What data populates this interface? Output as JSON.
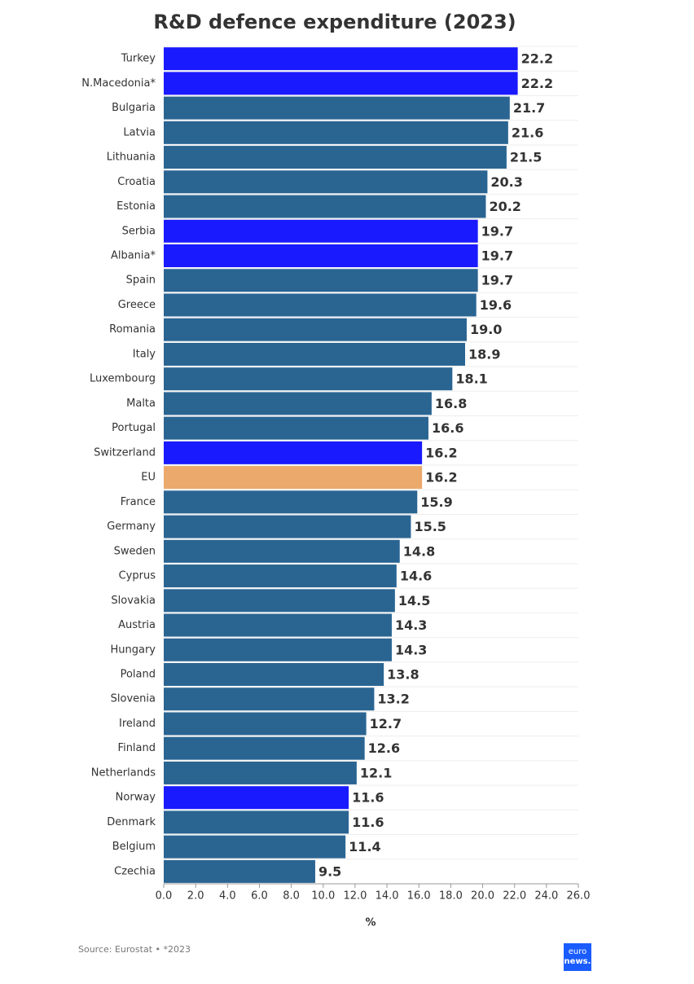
{
  "chart_data": {
    "type": "bar",
    "orientation": "horizontal",
    "title": "R&D defence expenditure (2023)",
    "categories": [
      "Turkey",
      "N.Macedonia*",
      "Bulgaria",
      "Latvia",
      "Lithuania",
      "Croatia",
      "Estonia",
      "Serbia",
      "Albania*",
      "Spain",
      "Greece",
      "Romania",
      "Italy",
      "Luxembourg",
      "Malta",
      "Portugal",
      "Switzerland",
      "EU",
      "France",
      "Germany",
      "Sweden",
      "Cyprus",
      "Slovakia",
      "Austria",
      "Hungary",
      "Poland",
      "Slovenia",
      "Ireland",
      "Finland",
      "Netherlands",
      "Norway",
      "Denmark",
      "Belgium",
      "Czechia"
    ],
    "values": [
      22.2,
      22.2,
      21.7,
      21.6,
      21.5,
      20.3,
      20.2,
      19.7,
      19.7,
      19.7,
      19.6,
      19,
      18.9,
      18.1,
      16.8,
      16.6,
      16.2,
      16.2,
      15.9,
      15.5,
      14.8,
      14.6,
      14.5,
      14.3,
      14.3,
      13.8,
      13.2,
      12.7,
      12.6,
      12.1,
      11.6,
      11.6,
      11.4,
      9.5
    ],
    "value_labels": [
      "22.2",
      "22.2",
      "21.7",
      "21.6",
      "21.5",
      "20.3",
      "20.2",
      "19.7",
      "19.7",
      "19.7",
      "19.6",
      "19.0",
      "18.9",
      "18.1",
      "16.8",
      "16.6",
      "16.2",
      "16.2",
      "15.9",
      "15.5",
      "14.8",
      "14.6",
      "14.5",
      "14.3",
      "14.3",
      "13.8",
      "13.2",
      "12.7",
      "12.6",
      "12.1",
      "11.6",
      "11.6",
      "11.4",
      "9.5"
    ],
    "colors": [
      "#1a1aff",
      "#1a1aff",
      "#2a6592",
      "#2a6592",
      "#2a6592",
      "#2a6592",
      "#2a6592",
      "#1a1aff",
      "#1a1aff",
      "#2a6592",
      "#2a6592",
      "#2a6592",
      "#2a6592",
      "#2a6592",
      "#2a6592",
      "#2a6592",
      "#1a1aff",
      "#eba96b",
      "#2a6592",
      "#2a6592",
      "#2a6592",
      "#2a6592",
      "#2a6592",
      "#2a6592",
      "#2a6592",
      "#2a6592",
      "#2a6592",
      "#2a6592",
      "#2a6592",
      "#2a6592",
      "#1a1aff",
      "#2a6592",
      "#2a6592",
      "#2a6592"
    ],
    "xlim": [
      0,
      26
    ],
    "xticks": [
      {
        "value": 0,
        "label": "0.0"
      },
      {
        "value": 2,
        "label": "2.0"
      },
      {
        "value": 4,
        "label": "4.0"
      },
      {
        "value": 6,
        "label": "6.0"
      },
      {
        "value": 8,
        "label": "8.0"
      },
      {
        "value": 10,
        "label": "10.0"
      },
      {
        "value": 12,
        "label": "12.0"
      },
      {
        "value": 14,
        "label": "14.0"
      },
      {
        "value": 16,
        "label": "16.0"
      },
      {
        "value": 18,
        "label": "18.0"
      },
      {
        "value": 20,
        "label": "20.0"
      },
      {
        "value": 22,
        "label": "22.0"
      },
      {
        "value": 24,
        "label": "24.0"
      },
      {
        "value": 26,
        "label": "26.0"
      }
    ],
    "xlabel": "%",
    "source": "Source: Eurostat • *2023",
    "logo": [
      "euro",
      "news."
    ]
  }
}
